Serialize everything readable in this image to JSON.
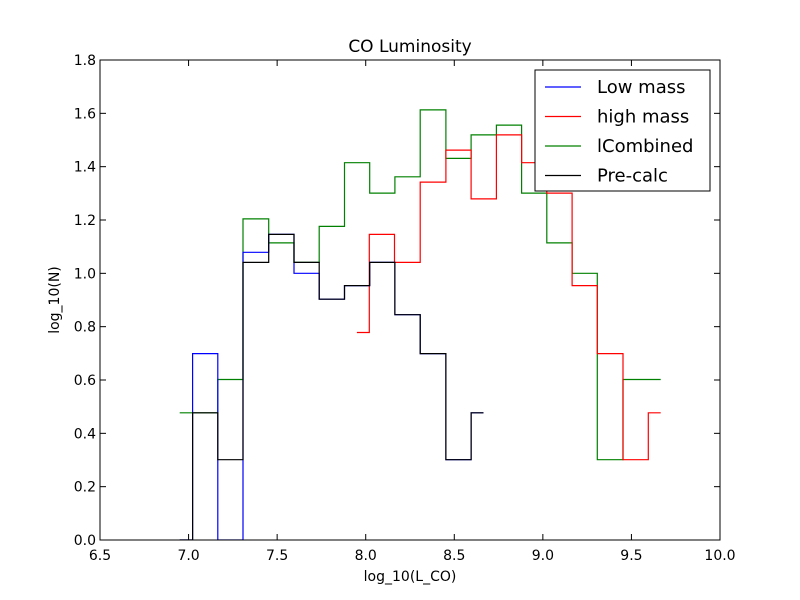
{
  "chart_data": {
    "type": "line",
    "title": "CO Luminosity",
    "xlabel": "log_10(L_CO)",
    "ylabel": "log_10(N)",
    "xlim": [
      6.5,
      10.0
    ],
    "ylim": [
      0.0,
      1.8
    ],
    "x_ticks": [
      "6.5",
      "7.0",
      "7.5",
      "8.0",
      "8.5",
      "9.0",
      "9.5",
      "10.0"
    ],
    "y_ticks": [
      "0.0",
      "0.2",
      "0.4",
      "0.6",
      "0.8",
      "1.0",
      "1.2",
      "1.4",
      "1.6",
      "1.8"
    ],
    "legend_position": "top-right",
    "step_style": "steps-mid",
    "series": [
      {
        "name": "Low mass",
        "color": "#0000ff",
        "x": [
          6.95,
          7.095,
          7.235,
          7.38,
          7.525,
          7.665,
          7.81,
          7.95,
          8.095,
          8.235,
          8.38,
          8.525,
          8.665
        ],
        "y": [
          0.0,
          0.699,
          0.0,
          1.079,
          1.146,
          1.0,
          0.903,
          0.954,
          1.041,
          0.845,
          0.699,
          0.301,
          0.477
        ]
      },
      {
        "name": "high mass",
        "color": "#ff0000",
        "x": [
          7.95,
          8.09,
          8.235,
          8.38,
          8.525,
          8.665,
          8.81,
          8.95,
          9.095,
          9.235,
          9.38,
          9.525,
          9.665
        ],
        "y": [
          0.778,
          1.146,
          1.041,
          1.342,
          1.462,
          1.279,
          1.519,
          1.415,
          1.301,
          0.954,
          0.699,
          0.301,
          0.477
        ]
      },
      {
        "name": "lCombined",
        "color": "#008000",
        "x": [
          6.95,
          7.095,
          7.235,
          7.38,
          7.525,
          7.665,
          7.81,
          7.95,
          8.095,
          8.235,
          8.38,
          8.525,
          8.665,
          8.81,
          8.95,
          9.095,
          9.235,
          9.38,
          9.525,
          9.665
        ],
        "y": [
          0.477,
          0.477,
          0.602,
          1.204,
          1.114,
          1.041,
          1.176,
          1.415,
          1.301,
          1.362,
          1.613,
          1.431,
          1.519,
          1.556,
          1.301,
          1.114,
          1.0,
          0.301,
          0.602,
          0.602
        ]
      },
      {
        "name": "Pre-calc",
        "color": "#000000",
        "x": [
          6.95,
          7.095,
          7.235,
          7.38,
          7.525,
          7.665,
          7.81,
          7.95,
          8.095,
          8.235,
          8.38,
          8.525,
          8.665
        ],
        "y": [
          0.0,
          0.477,
          0.301,
          1.041,
          1.146,
          1.041,
          0.903,
          0.954,
          1.041,
          0.845,
          0.699,
          0.301,
          0.477
        ]
      }
    ]
  }
}
